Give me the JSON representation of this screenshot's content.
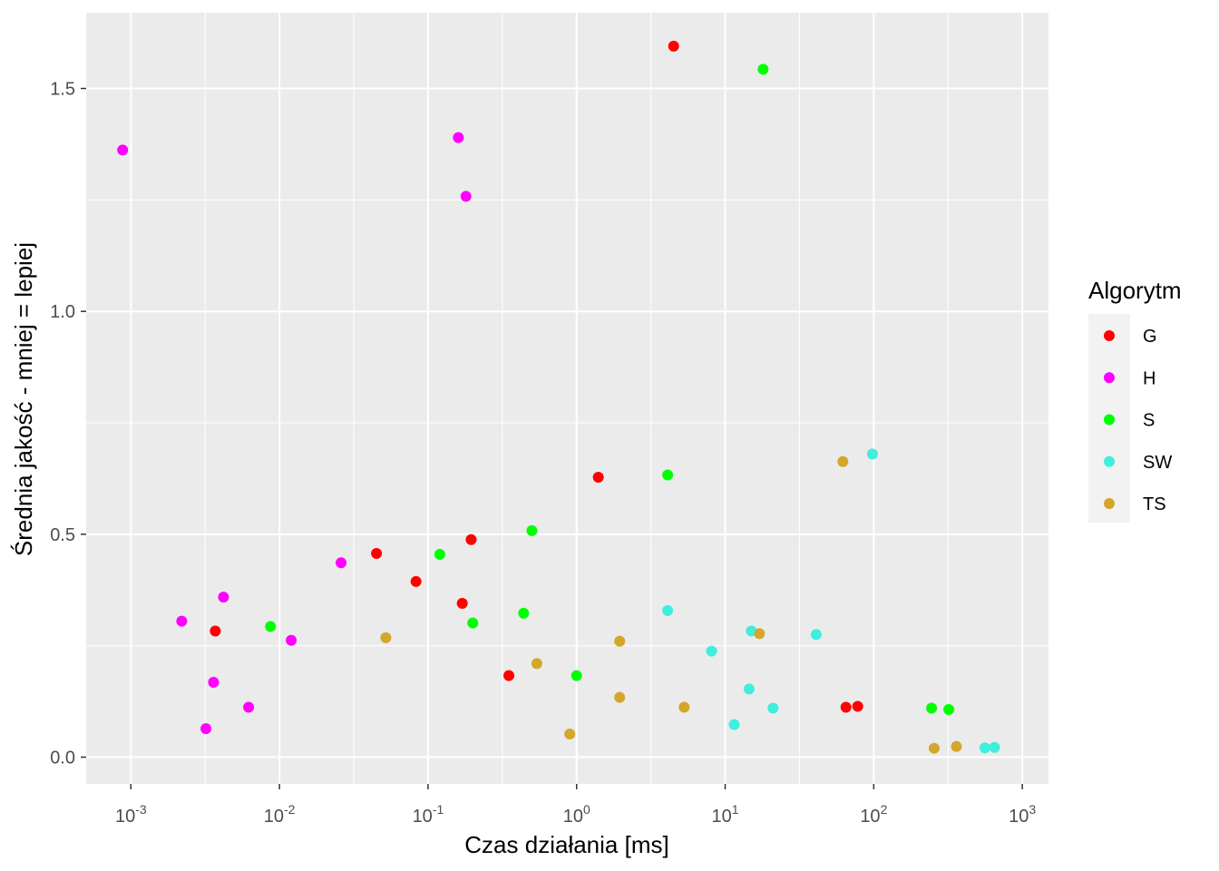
{
  "chart_data": {
    "type": "scatter",
    "x_scale": "log10",
    "xlabel": "Czas działania [ms]",
    "ylabel": "Średnia jakość - mniej = lepiej",
    "xlim": [
      0.0005,
      1500
    ],
    "ylim": [
      -0.06,
      1.67
    ],
    "x_ticks": [
      0.001,
      0.01,
      0.1,
      1,
      10,
      100,
      1000
    ],
    "x_tick_labels": [
      {
        "base": "10",
        "exp": "-3"
      },
      {
        "base": "10",
        "exp": "-2"
      },
      {
        "base": "10",
        "exp": "-1"
      },
      {
        "base": "10",
        "exp": "0"
      },
      {
        "base": "10",
        "exp": "1"
      },
      {
        "base": "10",
        "exp": "2"
      },
      {
        "base": "10",
        "exp": "3"
      }
    ],
    "y_ticks": [
      0.0,
      0.5,
      1.0,
      1.5
    ],
    "y_tick_labels": [
      "0.0",
      "0.5",
      "1.0",
      "1.5"
    ],
    "grid": true,
    "legend": {
      "title": "Algorytm",
      "position": "right"
    },
    "series": [
      {
        "name": "G",
        "color": "#ff0000",
        "points": [
          [
            0.0037,
            0.283
          ],
          [
            0.045,
            0.457
          ],
          [
            0.083,
            0.394
          ],
          [
            0.17,
            0.345
          ],
          [
            0.195,
            0.488
          ],
          [
            0.35,
            0.183
          ],
          [
            1.4,
            0.628
          ],
          [
            4.5,
            1.595
          ],
          [
            65,
            0.112
          ],
          [
            78,
            0.114
          ]
        ]
      },
      {
        "name": "H",
        "color": "#ff00ff",
        "points": [
          [
            0.00088,
            1.362
          ],
          [
            0.0022,
            0.305
          ],
          [
            0.0032,
            0.064
          ],
          [
            0.0036,
            0.168
          ],
          [
            0.0042,
            0.359
          ],
          [
            0.0062,
            0.112
          ],
          [
            0.012,
            0.262
          ],
          [
            0.026,
            0.436
          ],
          [
            0.16,
            1.39
          ],
          [
            0.18,
            1.258
          ]
        ]
      },
      {
        "name": "S",
        "color": "#00ff00",
        "points": [
          [
            0.0087,
            0.293
          ],
          [
            0.12,
            0.455
          ],
          [
            0.2,
            0.301
          ],
          [
            0.44,
            0.323
          ],
          [
            0.5,
            0.508
          ],
          [
            1.0,
            0.183
          ],
          [
            4.1,
            0.633
          ],
          [
            18,
            1.543
          ],
          [
            245,
            0.11
          ],
          [
            320,
            0.107
          ]
        ]
      },
      {
        "name": "SW",
        "color": "#40eedd",
        "points": [
          [
            4.1,
            0.329
          ],
          [
            8.1,
            0.238
          ],
          [
            11.5,
            0.073
          ],
          [
            14.5,
            0.153
          ],
          [
            15,
            0.283
          ],
          [
            21,
            0.11
          ],
          [
            41,
            0.275
          ],
          [
            98,
            0.68
          ],
          [
            560,
            0.021
          ],
          [
            650,
            0.022
          ]
        ]
      },
      {
        "name": "TS",
        "color": "#d4a62a",
        "points": [
          [
            0.052,
            0.268
          ],
          [
            0.54,
            0.21
          ],
          [
            0.9,
            0.052
          ],
          [
            1.95,
            0.26
          ],
          [
            1.95,
            0.134
          ],
          [
            5.3,
            0.112
          ],
          [
            17,
            0.277
          ],
          [
            62,
            0.663
          ],
          [
            255,
            0.02
          ],
          [
            360,
            0.024
          ]
        ]
      }
    ]
  }
}
